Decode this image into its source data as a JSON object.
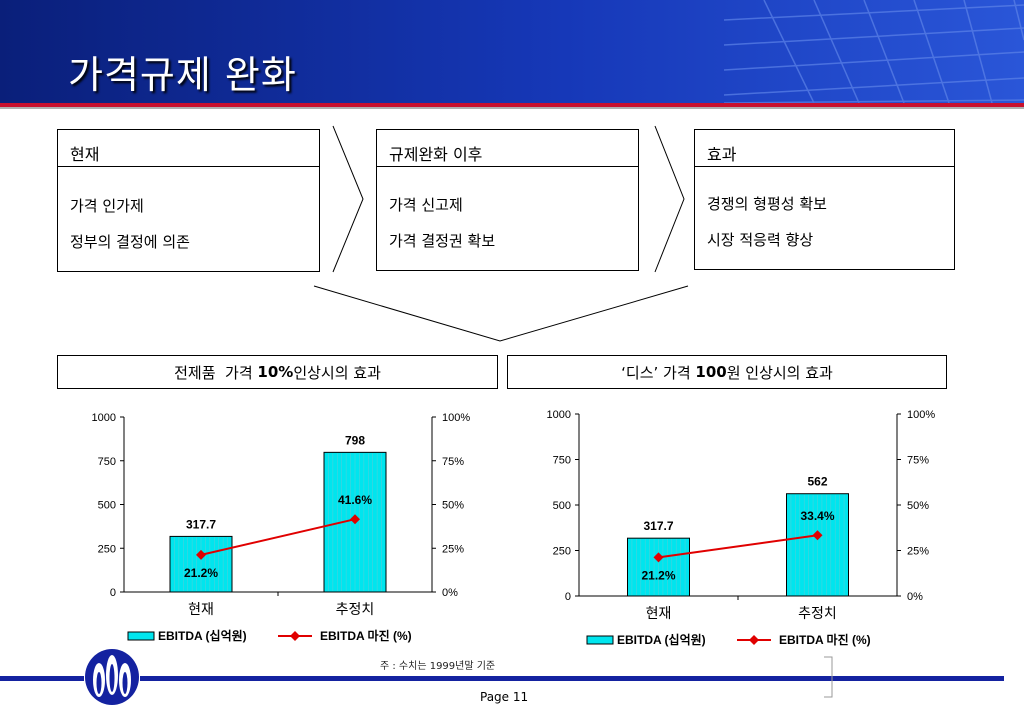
{
  "header": {
    "title": "가격규제 완화"
  },
  "flow": [
    {
      "title": "현재",
      "lines": [
        "가격 인가제",
        "정부의 결정에 의존"
      ]
    },
    {
      "title": "규제완화 이후",
      "lines": [
        "가격 신고제",
        "가격 결정권 확보"
      ]
    },
    {
      "title": "효과",
      "lines": [
        "경쟁의 형평성 확보",
        "시장 적응력 향상"
      ]
    }
  ],
  "panels": [
    {
      "title_pre": "전제품  가격 ",
      "title_bold": "10%",
      "title_post": "인상시의 효과"
    },
    {
      "title_pre": "‘디스’ 가격 ",
      "title_bold": "100",
      "title_post": "원 인상시의 효과"
    }
  ],
  "chart_data": [
    {
      "type": "bar",
      "categories": [
        "현재",
        "추정치"
      ],
      "series": [
        {
          "name": "EBITDA (십억원)",
          "type": "bar",
          "axis": "left",
          "values": [
            317.7,
            798
          ],
          "labels": [
            "317.7",
            "798"
          ]
        },
        {
          "name": "EBITDA 마진 (%)",
          "type": "line",
          "axis": "right",
          "values": [
            21.2,
            41.6
          ],
          "labels": [
            "21.2%",
            "41.6%"
          ]
        }
      ],
      "ylim": [
        0,
        1000
      ],
      "yticks": [
        "0",
        "250",
        "500",
        "750",
        "1000"
      ],
      "y2lim": [
        0,
        100
      ],
      "y2ticks": [
        "0%",
        "25%",
        "50%",
        "75%",
        "100%"
      ],
      "legend": "bottom",
      "grid": false
    },
    {
      "type": "bar",
      "categories": [
        "현재",
        "추정치"
      ],
      "series": [
        {
          "name": "EBITDA (십억원)",
          "type": "bar",
          "axis": "left",
          "values": [
            317.7,
            562
          ],
          "labels": [
            "317.7",
            "562"
          ]
        },
        {
          "name": "EBITDA 마진 (%)",
          "type": "line",
          "axis": "right",
          "values": [
            21.2,
            33.4
          ],
          "labels": [
            "21.2%",
            "33.4%"
          ]
        }
      ],
      "ylim": [
        0,
        1000
      ],
      "yticks": [
        "0",
        "250",
        "500",
        "750",
        "1000"
      ],
      "y2lim": [
        0,
        100
      ],
      "y2ticks": [
        "0%",
        "25%",
        "50%",
        "75%",
        "100%"
      ],
      "legend": "bottom",
      "grid": false
    }
  ],
  "footer": {
    "note": "주 : 수치는 1999년말 기준",
    "page": "Page 11"
  },
  "colors": {
    "bar_fill": "#00e5ee",
    "line": "#e00000",
    "marker": "#e00000",
    "brand_blue": "#1422a0"
  }
}
